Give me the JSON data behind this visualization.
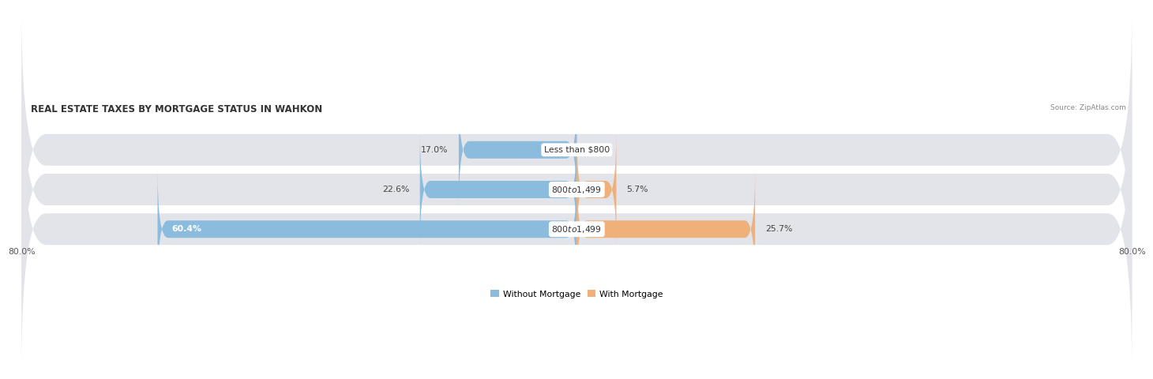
{
  "title": "REAL ESTATE TAXES BY MORTGAGE STATUS IN WAHKON",
  "source": "Source: ZipAtlas.com",
  "rows": [
    {
      "label": "Less than $800",
      "without_mortgage": 17.0,
      "with_mortgage": 0.0
    },
    {
      "label": "$800 to $1,499",
      "without_mortgage": 22.6,
      "with_mortgage": 5.7
    },
    {
      "label": "$800 to $1,499",
      "without_mortgage": 60.4,
      "with_mortgage": 25.7
    }
  ],
  "x_min": -80.0,
  "x_max": 80.0,
  "x_tick_left": "80.0%",
  "x_tick_right": "80.0%",
  "color_without": "#8BBCDD",
  "color_with": "#F0B07A",
  "bg_row": "#E2E4EA",
  "bg_figure": "#FFFFFF",
  "title_fontsize": 8.5,
  "label_fontsize": 7.8,
  "tick_fontsize": 7.8,
  "source_fontsize": 6.5
}
